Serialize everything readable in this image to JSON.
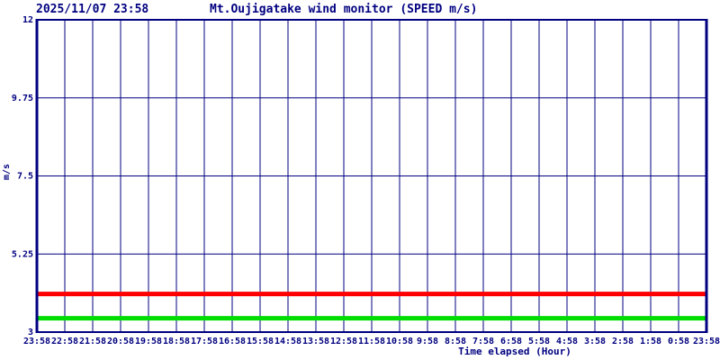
{
  "header": {
    "timestamp": "2025/11/07 23:58",
    "title": "Mt.Oujigatake wind monitor (SPEED m/s)"
  },
  "chart_data": {
    "type": "line",
    "title": "Mt.Oujigatake wind monitor (SPEED m/s)",
    "timestamp": "2025/11/07 23:58",
    "xlabel": "Time elapsed (Hour)",
    "ylabel": "m/s",
    "ylim": [
      3,
      12
    ],
    "yticks": [
      3,
      5.25,
      7.5,
      9.75,
      12
    ],
    "ytick_labels": [
      "3",
      "5.25",
      "7.5",
      "9.75",
      "12"
    ],
    "xtick_labels": [
      "23:58",
      "22:58",
      "21:58",
      "20:58",
      "19:58",
      "18:58",
      "17:58",
      "16:58",
      "15:58",
      "14:58",
      "13:58",
      "12:58",
      "11:58",
      "10:58",
      "9:58",
      "8:58",
      "7:58",
      "6:58",
      "5:58",
      "4:58",
      "3:58",
      "2:58",
      "1:58",
      "0:58",
      "23:58"
    ],
    "grid": true,
    "legend": "none",
    "series": [
      {
        "name": "wind-speed-upper-red",
        "color": "#ff0000",
        "constant_value": 4.1
      },
      {
        "name": "wind-speed-lower-green",
        "color": "#00dd00",
        "constant_value": 3.4
      }
    ]
  },
  "colors": {
    "axis": "#000080",
    "grid": "#000080",
    "text": "#000080",
    "background": "#ffffff",
    "red_line": "#ff0000",
    "green_line": "#00dd00"
  }
}
